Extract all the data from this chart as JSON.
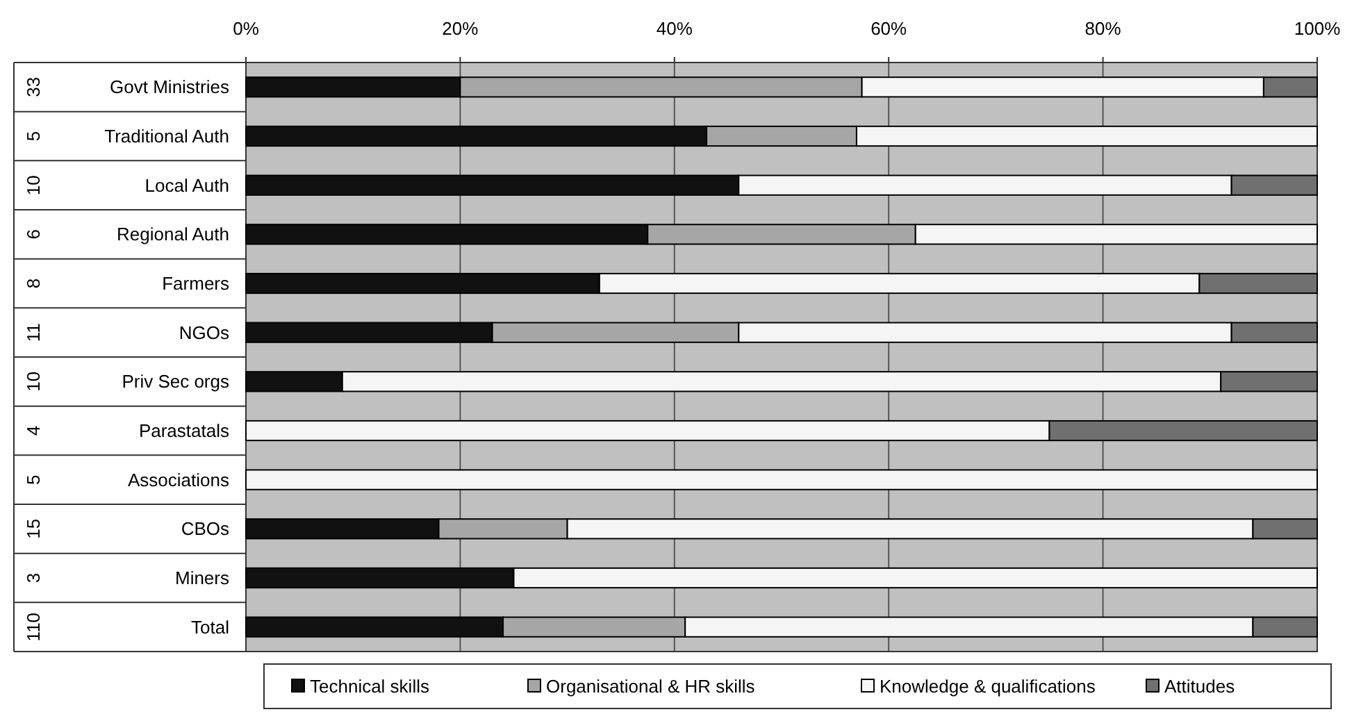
{
  "chart_data": {
    "type": "bar",
    "orientation": "horizontal",
    "stacked": true,
    "categories": [
      "Govt Ministries",
      "Traditional Auth",
      "Local Auth",
      "Regional Auth",
      "Farmers",
      "NGOs",
      "Priv Sec orgs",
      "Parastatals",
      "Associations",
      "CBOs",
      "Miners",
      "Total"
    ],
    "series": [
      {
        "name": "Technical skills",
        "color": "#111111",
        "values": [
          20,
          43,
          46,
          37.5,
          33,
          23,
          9,
          0,
          0,
          18,
          25,
          24
        ]
      },
      {
        "name": "Organisational & HR skills",
        "color": "#a6a6a6",
        "values": [
          37.5,
          14,
          0,
          25,
          0,
          23,
          0,
          0,
          0,
          12,
          0,
          17
        ]
      },
      {
        "name": "Knowledge & qualifications",
        "color": "#f5f5f5",
        "values": [
          37.5,
          43,
          46,
          37.5,
          56,
          46,
          82,
          75,
          100,
          64,
          75,
          53
        ]
      },
      {
        "name": "Attitudes",
        "color": "#707070",
        "values": [
          5,
          0,
          8,
          0,
          11,
          8,
          9,
          25,
          0,
          6,
          0,
          6
        ]
      }
    ],
    "xlim": [
      0,
      100
    ],
    "xticks": [
      {
        "value": 0,
        "label": "0%"
      },
      {
        "value": 20,
        "label": "20%"
      },
      {
        "value": 40,
        "label": "40%"
      },
      {
        "value": 60,
        "label": "60%"
      },
      {
        "value": 80,
        "label": "80%"
      },
      {
        "value": 100,
        "label": "100%"
      }
    ],
    "grid": "x",
    "legend": "bottom",
    "annotations": [
      "33",
      "5",
      "10",
      "6",
      "8",
      "11",
      "10",
      "4",
      "5",
      "15",
      "3",
      "110"
    ]
  }
}
